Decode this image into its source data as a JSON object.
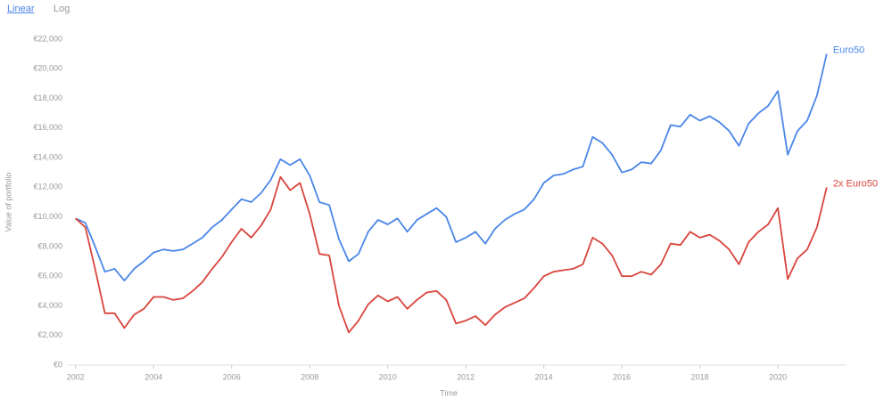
{
  "controls": [
    "Linear",
    "Log"
  ],
  "chart_data": {
    "type": "line",
    "log_scale": false,
    "grid": false,
    "xlabel": "Time",
    "ylabel": "Value of portfolio",
    "xlim": [
      2001.8,
      2021.3
    ],
    "xticks": [
      2002,
      2004,
      2006,
      2008,
      2010,
      2012,
      2014,
      2016,
      2018,
      2020
    ],
    "ylim": [
      0,
      22000
    ],
    "yticks": [
      {
        "value": 0,
        "label": "€0"
      },
      {
        "value": 2000,
        "label": "€2,000"
      },
      {
        "value": 4000,
        "label": "€4,000"
      },
      {
        "value": 6000,
        "label": "€6,000"
      },
      {
        "value": 8000,
        "label": "€8,000"
      },
      {
        "value": 10000,
        "label": "€10,000"
      },
      {
        "value": 12000,
        "label": "€12,000"
      },
      {
        "value": 14000,
        "label": "€14,000"
      },
      {
        "value": 16000,
        "label": "€16,000"
      },
      {
        "value": 18000,
        "label": "€18,000"
      },
      {
        "value": 20000,
        "label": "€20,000"
      },
      {
        "value": 22000,
        "label": "€22,000"
      }
    ],
    "x": [
      2002.0,
      2002.25,
      2002.5,
      2002.75,
      2003.0,
      2003.25,
      2003.5,
      2003.75,
      2004.0,
      2004.25,
      2004.5,
      2004.75,
      2005.0,
      2005.25,
      2005.5,
      2005.75,
      2006.0,
      2006.25,
      2006.5,
      2006.75,
      2007.0,
      2007.25,
      2007.5,
      2007.75,
      2008.0,
      2008.25,
      2008.5,
      2008.75,
      2009.0,
      2009.25,
      2009.5,
      2009.75,
      2010.0,
      2010.25,
      2010.5,
      2010.75,
      2011.0,
      2011.25,
      2011.5,
      2011.75,
      2012.0,
      2012.25,
      2012.5,
      2012.75,
      2013.0,
      2013.25,
      2013.5,
      2013.75,
      2014.0,
      2014.25,
      2014.5,
      2014.75,
      2015.0,
      2015.25,
      2015.5,
      2015.75,
      2016.0,
      2016.25,
      2016.5,
      2016.75,
      2017.0,
      2017.25,
      2017.5,
      2017.75,
      2018.0,
      2018.25,
      2018.5,
      2018.75,
      2019.0,
      2019.25,
      2019.5,
      2019.75,
      2020.0,
      2020.25,
      2020.5,
      2020.75,
      2021.0,
      2021.25
    ],
    "series": [
      {
        "name": "Euro50",
        "color": "#4a86e8",
        "values": [
          9900,
          9600,
          8000,
          6300,
          6500,
          5700,
          6500,
          7000,
          7600,
          7800,
          7700,
          7800,
          8200,
          8600,
          9300,
          9800,
          10500,
          11200,
          11000,
          11600,
          12500,
          13900,
          13500,
          13900,
          12800,
          11000,
          10800,
          8500,
          7000,
          7500,
          9000,
          9800,
          9500,
          9900,
          9000,
          9800,
          10200,
          10600,
          10000,
          8300,
          8600,
          9000,
          8200,
          9200,
          9800,
          10200,
          10500,
          11200,
          12300,
          12800,
          12900,
          13200,
          13400,
          15400,
          15000,
          14200,
          13000,
          13200,
          13700,
          13600,
          14500,
          16200,
          16100,
          16900,
          16500,
          16800,
          16400,
          15800,
          14800,
          16300,
          17000,
          17500,
          18500,
          14200,
          15800,
          16500,
          18200,
          21000
        ]
      },
      {
        "name": "2x Euro50",
        "color": "#d9453d",
        "values": [
          9900,
          9300,
          6500,
          3500,
          3500,
          2500,
          3400,
          3800,
          4600,
          4600,
          4400,
          4500,
          5000,
          5600,
          6500,
          7300,
          8300,
          9200,
          8600,
          9400,
          10500,
          12700,
          11800,
          12300,
          10200,
          7500,
          7400,
          4000,
          2200,
          3000,
          4100,
          4700,
          4300,
          4600,
          3800,
          4400,
          4900,
          5000,
          4400,
          2800,
          3000,
          3300,
          2700,
          3400,
          3900,
          4200,
          4500,
          5200,
          6000,
          6300,
          6400,
          6500,
          6800,
          8600,
          8200,
          7400,
          6000,
          6000,
          6300,
          6100,
          6800,
          8200,
          8100,
          9000,
          8600,
          8800,
          8400,
          7800,
          6800,
          8300,
          9000,
          9500,
          10600,
          5800,
          7200,
          7800,
          9300,
          12000
        ]
      }
    ]
  }
}
